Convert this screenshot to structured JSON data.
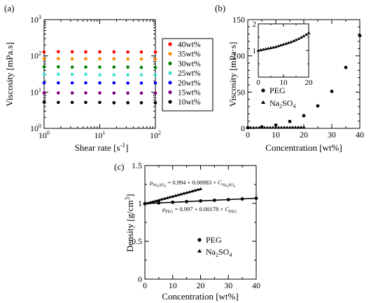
{
  "chart_data": [
    {
      "panel_label": "(a)",
      "type": "scatter",
      "xlabel": "Shear rate [s",
      "xlabel_sup": "-1",
      "xlabel_end": "]",
      "ylabel": "Viscosity [mPa.s]",
      "xscale": "log",
      "yscale": "log",
      "xlim": [
        1,
        100
      ],
      "ylim": [
        1,
        1000
      ],
      "xticks": [
        {
          "v": 1,
          "base": "10",
          "exp": "0"
        },
        {
          "v": 10,
          "base": "10",
          "exp": "1"
        },
        {
          "v": 100,
          "base": "10",
          "exp": "2"
        }
      ],
      "yticks": [
        {
          "v": 1,
          "base": "10",
          "exp": "0"
        },
        {
          "v": 10,
          "base": "10",
          "exp": "1"
        },
        {
          "v": 100,
          "base": "10",
          "exp": "2"
        },
        {
          "v": 1000,
          "base": "10",
          "exp": "3"
        }
      ],
      "x": [
        1.0,
        1.8,
        3.2,
        5.6,
        10,
        18,
        32,
        56,
        100
      ],
      "series": [
        {
          "name": "40wt%",
          "color": "#ff0000",
          "values": [
            128,
            130,
            130,
            129,
            129,
            129,
            128,
            128,
            128
          ]
        },
        {
          "name": "35wt%",
          "color": "#ff8c00",
          "values": [
            84,
            84,
            83,
            83,
            83,
            83,
            82,
            82,
            82
          ]
        },
        {
          "name": "30wt%",
          "color": "#008000",
          "values": [
            50,
            50,
            49,
            49,
            49,
            49,
            49,
            48,
            48
          ]
        },
        {
          "name": "25wt%",
          "color": "#40e0d0",
          "values": [
            31,
            31,
            31,
            31,
            30,
            30,
            30,
            30,
            30
          ]
        },
        {
          "name": "20wt%",
          "color": "#0000ff",
          "values": [
            18,
            18,
            18,
            18,
            18,
            18,
            17.8,
            17.8,
            17.8
          ]
        },
        {
          "name": "15wt%",
          "color": "#800080",
          "values": [
            9.5,
            9.5,
            9.5,
            9.5,
            9.5,
            9.4,
            9.4,
            9.4,
            9.4
          ]
        },
        {
          "name": "10wt%",
          "color": "#000000",
          "values": [
            5.3,
            5.2,
            5.2,
            5.2,
            5.2,
            5.1,
            5.1,
            5.1,
            5.1
          ]
        }
      ],
      "legend_position": "outside-right"
    },
    {
      "panel_label": "(b)",
      "type": "scatter",
      "xlabel": "Concentration [wt%]",
      "ylabel": "Viscosity [mPa·s]",
      "xlim": [
        0,
        40
      ],
      "ylim": [
        0,
        150
      ],
      "xticks": [
        0,
        10,
        20,
        30,
        40
      ],
      "yticks": [
        0,
        50,
        100,
        150
      ],
      "series": [
        {
          "name": "PEG",
          "marker": "circle",
          "x": [
            0,
            5,
            10,
            15,
            20,
            25,
            30,
            35,
            40
          ],
          "y": [
            1.0,
            2.0,
            4.5,
            9.5,
            17.5,
            31,
            51,
            84,
            128
          ]
        },
        {
          "name": "Na2SO4",
          "marker": "triangle",
          "x": [
            0,
            1,
            2,
            3,
            4,
            5,
            6,
            7,
            8,
            9,
            10,
            11,
            12,
            13,
            14,
            15,
            16,
            17,
            18,
            19,
            20
          ],
          "y": [
            1.0,
            1.02,
            1.04,
            1.06,
            1.08,
            1.1,
            1.12,
            1.14,
            1.17,
            1.2,
            1.23,
            1.26,
            1.29,
            1.32,
            1.36,
            1.4,
            1.44,
            1.49,
            1.54,
            1.6,
            1.66
          ]
        }
      ],
      "legend_position": "center-left",
      "legend_labels": [
        {
          "text": "PEG"
        },
        {
          "text": "Na",
          "sub": "2",
          "text2": "SO",
          "sub2": "4"
        }
      ],
      "inset": {
        "xlim": [
          0,
          20
        ],
        "ylim": [
          0,
          2
        ],
        "xticks": [
          0,
          10,
          20
        ],
        "yticks": [
          1,
          2
        ],
        "series": [
          {
            "name": "Na2SO4",
            "marker": "triangle",
            "x": [
              0,
              1,
              2,
              3,
              4,
              5,
              6,
              7,
              8,
              9,
              10,
              11,
              12,
              13,
              14,
              15,
              16,
              17,
              18,
              19,
              20
            ],
            "y": [
              1.0,
              1.02,
              1.04,
              1.06,
              1.08,
              1.1,
              1.12,
              1.14,
              1.17,
              1.2,
              1.23,
              1.26,
              1.29,
              1.32,
              1.36,
              1.4,
              1.44,
              1.49,
              1.54,
              1.6,
              1.66
            ]
          }
        ]
      }
    },
    {
      "panel_label": "(c)",
      "type": "scatter",
      "xlabel": "Concentration [wt%]",
      "ylabel": "Density [g/cm",
      "ylabel_sup": "3",
      "ylabel_end": "]",
      "xlim": [
        0,
        40
      ],
      "ylim": [
        0,
        1.5
      ],
      "xticks": [
        0,
        10,
        20,
        30,
        40
      ],
      "yticks": [
        0,
        0.5,
        1,
        1.5
      ],
      "series": [
        {
          "name": "PEG",
          "marker": "circle",
          "x": [
            0,
            5,
            10,
            15,
            20,
            25,
            30,
            35,
            40
          ],
          "y": [
            0.997,
            1.006,
            1.015,
            1.024,
            1.033,
            1.041,
            1.05,
            1.059,
            1.068
          ]
        },
        {
          "name": "Na2SO4",
          "marker": "triangle",
          "x": [
            0,
            1,
            2,
            3,
            4,
            5,
            6,
            7,
            8,
            9,
            10,
            11,
            12,
            13,
            14,
            15,
            16,
            17,
            18,
            19,
            20
          ],
          "y": [
            0.994,
            1.004,
            1.014,
            1.024,
            1.033,
            1.043,
            1.053,
            1.063,
            1.073,
            1.083,
            1.092,
            1.102,
            1.112,
            1.122,
            1.132,
            1.141,
            1.151,
            1.161,
            1.171,
            1.181,
            1.191
          ]
        }
      ],
      "fits": [
        {
          "series": "PEG",
          "intercept": 0.997,
          "slope": 0.00178,
          "xrange": [
            0,
            40
          ]
        },
        {
          "series": "Na2SO4",
          "intercept": 0.994,
          "slope": 0.00983,
          "xrange": [
            0,
            20
          ]
        }
      ],
      "annotations": [
        {
          "rho_sub": "Na",
          "rho_sub_small": "2",
          "rho_sub_rest": "SO",
          "rho_sub_small2": "4",
          "equation": " = 0.994 + 0.00983 × ",
          "var": "C",
          "var_sub": "Na",
          "var_sub_small": "2",
          "var_sub_rest": "SO",
          "var_sub_small2": "4"
        },
        {
          "rho_sub": "PEG",
          "equation": " = 0.997 + 0.00178 × ",
          "var": "C",
          "var_sub": "PEG"
        }
      ],
      "legend_position": "lower-right",
      "legend_labels": [
        {
          "text": "PEG"
        },
        {
          "text": "Na",
          "sub": "2",
          "text2": "SO",
          "sub2": "4"
        }
      ]
    }
  ]
}
